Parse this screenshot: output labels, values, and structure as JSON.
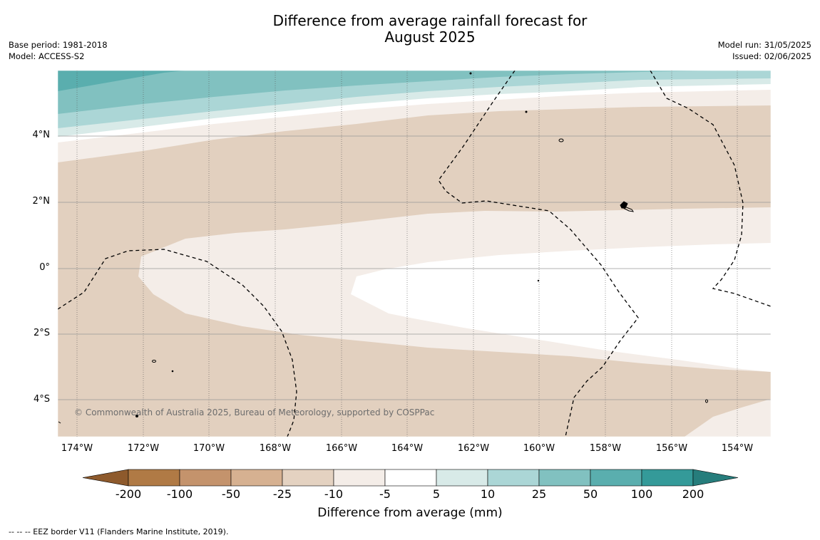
{
  "title_line1": "Difference from average rainfall forecast for",
  "title_line2": "August 2025",
  "base_period": "Base period: 1981-2018",
  "model": "Model: ACCESS-S2",
  "model_run": "Model run: 31/05/2025",
  "issued": "Issued: 02/06/2025",
  "lat_labels": [
    "4°N",
    "2°N",
    "0°",
    "2°S",
    "4°S"
  ],
  "lon_labels": [
    "174°W",
    "172°W",
    "170°W",
    "168°W",
    "166°W",
    "164°W",
    "162°W",
    "160°W",
    "158°W",
    "156°W",
    "154°W"
  ],
  "copyright": "© Commonwealth of Australia 2025, Bureau of Meteorology, supported by COSPPac",
  "colorbar": {
    "ticks": [
      "-200",
      "-100",
      "-50",
      "-25",
      "-10",
      "-5",
      "5",
      "10",
      "25",
      "50",
      "100",
      "200"
    ],
    "colors": [
      "#8e5a2c",
      "#b07a45",
      "#c4936c",
      "#d6b191",
      "#e4d2c1",
      "#f4ede8",
      "#ffffff",
      "#d8eae8",
      "#abd6d6",
      "#81c1c0",
      "#5aaeae",
      "#349a99",
      "#267d7c"
    ],
    "label": "Difference from average (mm)"
  },
  "footnote": "--  --  -- EEZ border V11 (Flanders Marine Institute, 2019)."
}
